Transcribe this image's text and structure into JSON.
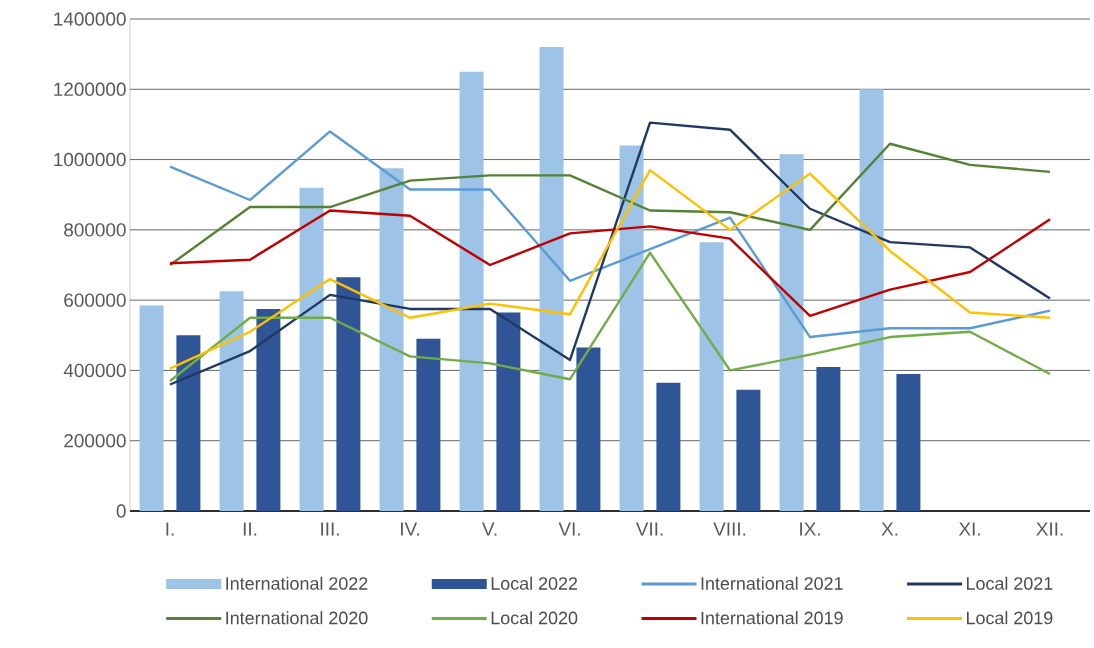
{
  "chart_data": {
    "type": "bar",
    "categories": [
      "I.",
      "II.",
      "III.",
      "IV.",
      "V.",
      "VI.",
      "VII.",
      "VIII.",
      "IX.",
      "X.",
      "XI.",
      "XII."
    ],
    "ylim": [
      0,
      1400000
    ],
    "yticks": [
      0,
      200000,
      400000,
      600000,
      800000,
      1000000,
      1200000,
      1400000
    ],
    "grid": "y",
    "legend": "bottom",
    "series": [
      {
        "name": "International 2022",
        "color": "#9dc3e6",
        "values": [
          585000,
          625000,
          920000,
          975000,
          1250000,
          1320000,
          1040000,
          765000,
          1015000,
          1200000,
          null,
          null
        ]
      },
      {
        "name": "Local 2022",
        "color": "#2f5597",
        "values": [
          500000,
          575000,
          665000,
          490000,
          565000,
          465000,
          365000,
          345000,
          410000,
          390000,
          null,
          null
        ]
      },
      {
        "type": "line",
        "name": "International 2021",
        "color": "#5b9bd5",
        "values": [
          980000,
          885000,
          1080000,
          915000,
          915000,
          655000,
          745000,
          835000,
          495000,
          520000,
          520000,
          570000
        ]
      },
      {
        "type": "line",
        "name": "Local 2021",
        "color": "#203864",
        "values": [
          360000,
          455000,
          615000,
          575000,
          575000,
          430000,
          1105000,
          1085000,
          860000,
          765000,
          750000,
          605000
        ]
      },
      {
        "type": "line",
        "name": "International 2020",
        "color": "#548235",
        "values": [
          700000,
          865000,
          865000,
          940000,
          955000,
          955000,
          855000,
          850000,
          800000,
          1045000,
          985000,
          965000
        ]
      },
      {
        "type": "line",
        "name": "Local 2020",
        "color": "#70ad47",
        "values": [
          370000,
          550000,
          550000,
          440000,
          420000,
          375000,
          735000,
          400000,
          445000,
          495000,
          510000,
          390000
        ]
      },
      {
        "type": "line",
        "name": "International 2019",
        "color": "#c00000",
        "values": [
          705000,
          715000,
          855000,
          840000,
          700000,
          790000,
          810000,
          775000,
          555000,
          630000,
          680000,
          830000
        ]
      },
      {
        "type": "line",
        "name": "Local 2019",
        "color": "#ffc000",
        "values": [
          405000,
          510000,
          660000,
          550000,
          590000,
          560000,
          970000,
          800000,
          960000,
          740000,
          565000,
          550000
        ]
      }
    ]
  }
}
